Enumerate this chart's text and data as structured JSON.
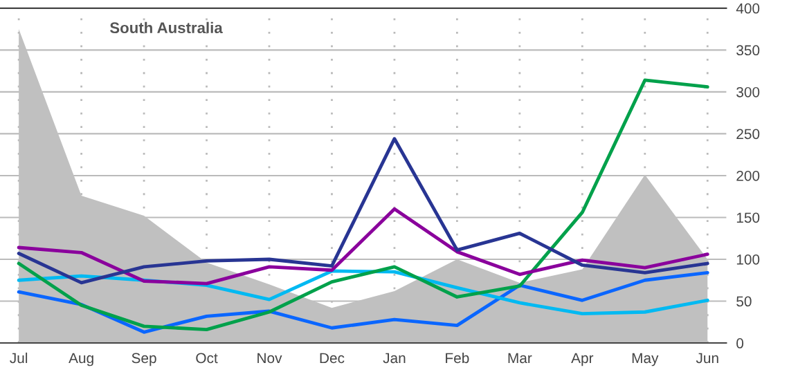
{
  "chart_data": {
    "type": "line",
    "title": "South Australia",
    "categories": [
      "Jul",
      "Aug",
      "Sep",
      "Oct",
      "Nov",
      "Dec",
      "Jan",
      "Feb",
      "Mar",
      "Apr",
      "May",
      "Jun"
    ],
    "series": [
      {
        "type": "area",
        "color": "#c0c0c0",
        "values": [
          375,
          176,
          152,
          96,
          70,
          42,
          62,
          100,
          72,
          88,
          201,
          100
        ]
      },
      {
        "color": "#0a66ff",
        "values": [
          61,
          46,
          13,
          32,
          38,
          18,
          28,
          21,
          69,
          51,
          75,
          84
        ]
      },
      {
        "color": "#00b9f2",
        "values": [
          75,
          80,
          75,
          69,
          52,
          86,
          85,
          66,
          48,
          35,
          37,
          51
        ]
      },
      {
        "color": "#00a14b",
        "values": [
          95,
          45,
          20,
          16,
          37,
          73,
          91,
          55,
          68,
          156,
          314,
          306
        ]
      },
      {
        "color": "#8a009c",
        "values": [
          114,
          108,
          74,
          71,
          91,
          87,
          160,
          109,
          82,
          99,
          90,
          106
        ]
      },
      {
        "color": "#283593",
        "values": [
          107,
          72,
          91,
          98,
          100,
          92,
          244,
          111,
          131,
          93,
          84,
          95
        ]
      }
    ],
    "ylim": [
      0,
      400
    ],
    "yticks": [
      0,
      50,
      100,
      150,
      200,
      250,
      300,
      350,
      400
    ],
    "grid": true
  }
}
